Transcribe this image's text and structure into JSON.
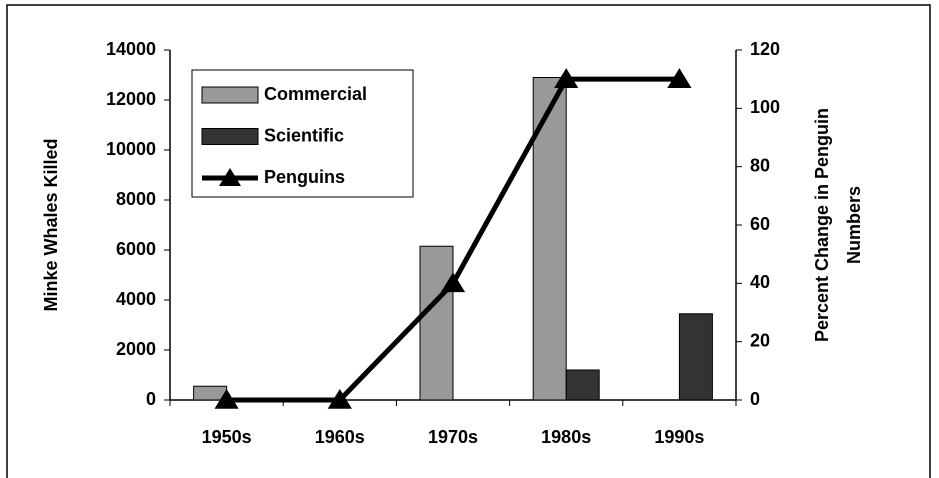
{
  "chart_data": {
    "type": "bar",
    "categories": [
      "1950s",
      "1960s",
      "1970s",
      "1980s",
      "1990s"
    ],
    "series": [
      {
        "name": "Commercial",
        "color": "#999999",
        "values": [
          550,
          0,
          6150,
          12900,
          0
        ]
      },
      {
        "name": "Scientific",
        "color": "#333333",
        "values": [
          0,
          0,
          0,
          1200,
          3450
        ]
      },
      {
        "name": "Penguins",
        "color": "#000000",
        "type": "line",
        "axis": "y2",
        "values": [
          0,
          0,
          40,
          110,
          110
        ]
      }
    ],
    "ylabel": "Minke Whales Killed",
    "y2label": [
      "Percent Change in Penguin",
      "Numbers"
    ],
    "ylim": [
      0,
      14000
    ],
    "yticks": [
      0,
      2000,
      4000,
      6000,
      8000,
      10000,
      12000,
      14000
    ],
    "y2lim": [
      0,
      120
    ],
    "y2ticks": [
      0,
      20,
      40,
      60,
      80,
      100,
      120
    ],
    "grid": false,
    "legend": "upper left"
  }
}
